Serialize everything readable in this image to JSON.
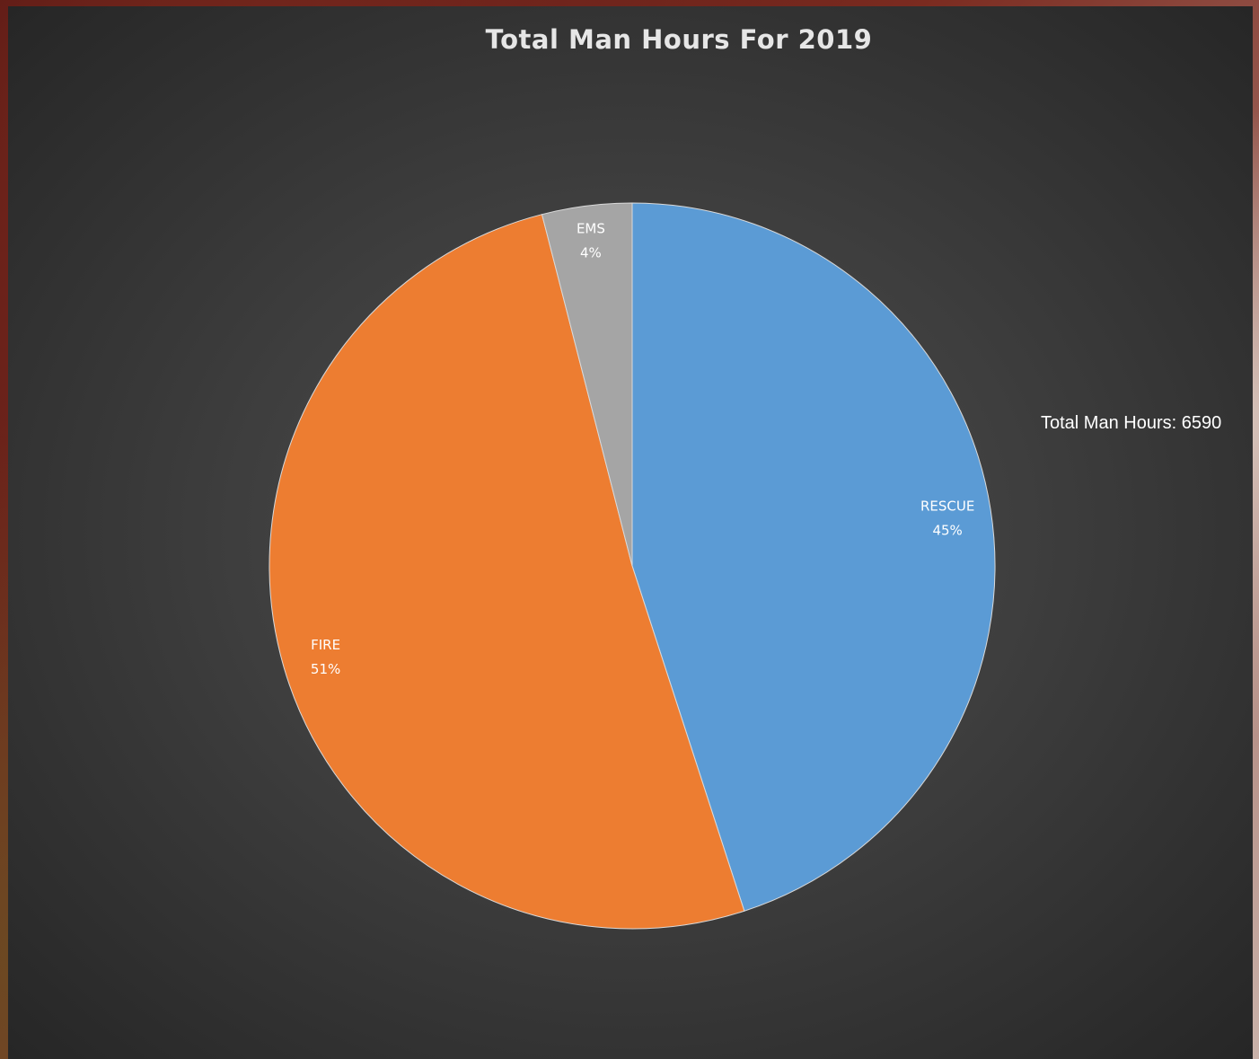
{
  "chart_data": {
    "type": "pie",
    "title": "Total Man Hours For 2019",
    "annotation": "Total Man Hours: 6590",
    "slices": [
      {
        "name": "RESCUE",
        "label": "45%",
        "value": 45,
        "color": "#5b9bd5"
      },
      {
        "name": "FIRE",
        "label": "51%",
        "value": 51,
        "color": "#ed7d31"
      },
      {
        "name": "EMS",
        "label": "4%",
        "value": 4,
        "color": "#a5a5a5"
      }
    ],
    "legend": "none"
  }
}
